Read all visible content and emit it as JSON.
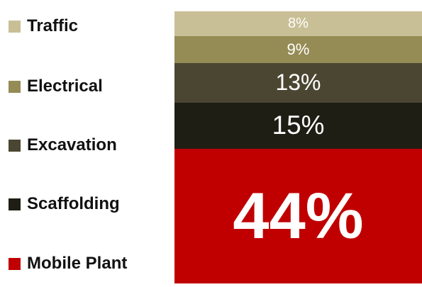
{
  "chart_data": {
    "type": "bar",
    "stacked": true,
    "orientation": "vertical",
    "legend_position": "left",
    "categories": [
      ""
    ],
    "series": [
      {
        "name": "Mobile Plant",
        "values": [
          44
        ],
        "label": "44%",
        "color": "#c00000"
      },
      {
        "name": "Scaffolding",
        "values": [
          15
        ],
        "label": "15%",
        "color": "#1f1e15"
      },
      {
        "name": "Excavation",
        "values": [
          13
        ],
        "label": "13%",
        "color": "#4b4632"
      },
      {
        "name": "Electrical",
        "values": [
          9
        ],
        "label": "9%",
        "color": "#958b55"
      },
      {
        "name": "Traffic",
        "values": [
          8
        ],
        "label": "8%",
        "color": "#c9bf96"
      }
    ]
  }
}
